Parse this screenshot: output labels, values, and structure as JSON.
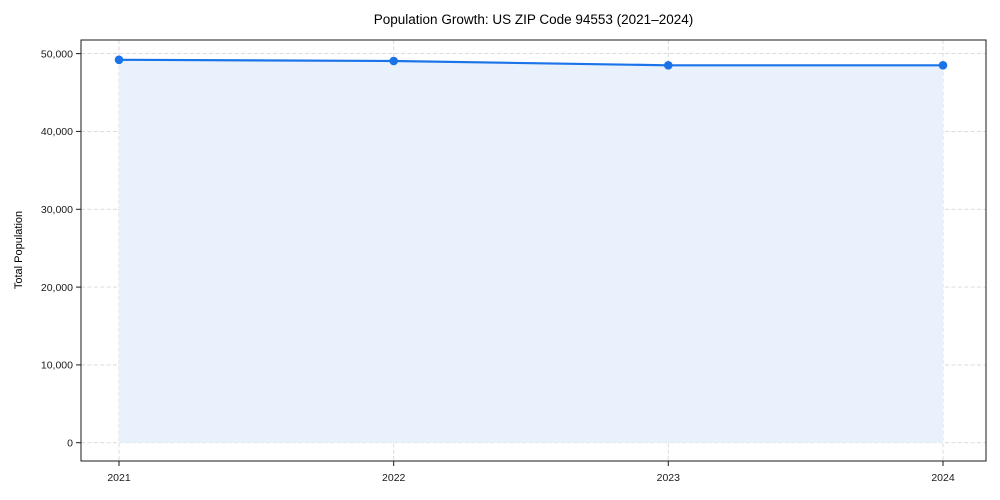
{
  "chart_data": {
    "type": "line",
    "title": "Population Growth: US ZIP Code 94553 (2021–2024)",
    "xlabel": "",
    "ylabel": "Total Population",
    "x": [
      "2021",
      "2022",
      "2023",
      "2024"
    ],
    "series": [
      {
        "name": "Total Population",
        "values": [
          49200,
          49050,
          48500,
          48500
        ]
      }
    ],
    "ytick_values": [
      0,
      10000,
      20000,
      30000,
      40000,
      50000
    ],
    "ytick_labels": [
      "0",
      "10,000",
      "20,000",
      "30,000",
      "40,000",
      "50,000"
    ],
    "ylim": [
      -2350,
      51750
    ],
    "grid": true,
    "grid_style": "dashed",
    "legend": "none",
    "marker": "circle",
    "area_fill": true,
    "area_baseline": 0,
    "colors": {
      "line": "#1a73e8",
      "marker": "#1a73e8",
      "area": "#e8f1fc",
      "grid": "#d7d7d7",
      "spine": "#1a1a1a",
      "text": "#1a1a1a",
      "background": "#ffffff"
    }
  }
}
